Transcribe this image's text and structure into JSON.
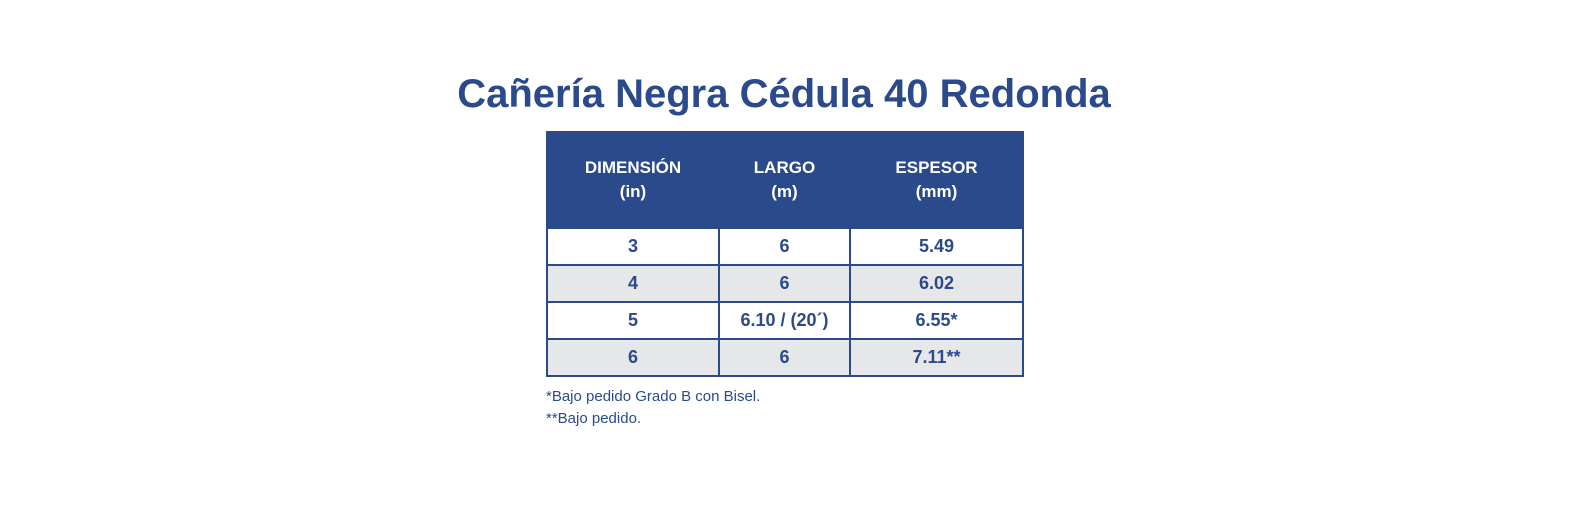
{
  "title": "Cañería Negra Cédula 40 Redonda",
  "table": {
    "headers": [
      {
        "label": "DIMENSIÓN",
        "unit": "(in)"
      },
      {
        "label": "LARGO",
        "unit": "(m)"
      },
      {
        "label": "ESPESOR",
        "unit": "(mm)"
      }
    ],
    "rows": [
      [
        "3",
        "6",
        "5.49"
      ],
      [
        "4",
        "6",
        "6.02"
      ],
      [
        "5",
        "6.10 / (20´)",
        "6.55*"
      ],
      [
        "6",
        "6",
        "7.11**"
      ]
    ]
  },
  "notes": [
    "*Bajo pedido Grado B con Bisel.",
    "**Bajo pedido."
  ],
  "colors": {
    "primary": "#2b4a8b",
    "alt_row": "#e6e7e8"
  }
}
